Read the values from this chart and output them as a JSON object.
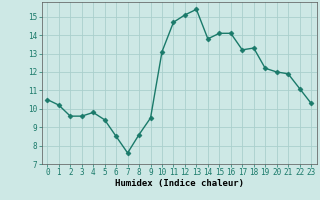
{
  "title": "",
  "xlabel": "Humidex (Indice chaleur)",
  "x": [
    0,
    1,
    2,
    3,
    4,
    5,
    6,
    7,
    8,
    9,
    10,
    11,
    12,
    13,
    14,
    15,
    16,
    17,
    18,
    19,
    20,
    21,
    22,
    23
  ],
  "y": [
    10.5,
    10.2,
    9.6,
    9.6,
    9.8,
    9.4,
    8.5,
    7.6,
    8.6,
    9.5,
    13.1,
    14.7,
    15.1,
    15.4,
    13.8,
    14.1,
    14.1,
    13.2,
    13.3,
    12.2,
    12.0,
    11.9,
    11.1,
    10.3
  ],
  "line_color": "#1a7a6a",
  "marker": "D",
  "marker_size": 2.5,
  "background_color": "#cde8e5",
  "grid_color": "#aacfcc",
  "ylim": [
    7,
    15.8
  ],
  "xlim": [
    -0.5,
    23.5
  ],
  "yticks": [
    7,
    8,
    9,
    10,
    11,
    12,
    13,
    14,
    15
  ],
  "xticks": [
    0,
    1,
    2,
    3,
    4,
    5,
    6,
    7,
    8,
    9,
    10,
    11,
    12,
    13,
    14,
    15,
    16,
    17,
    18,
    19,
    20,
    21,
    22,
    23
  ],
  "tick_fontsize": 5.5,
  "xlabel_fontsize": 6.5,
  "line_width": 1.0
}
